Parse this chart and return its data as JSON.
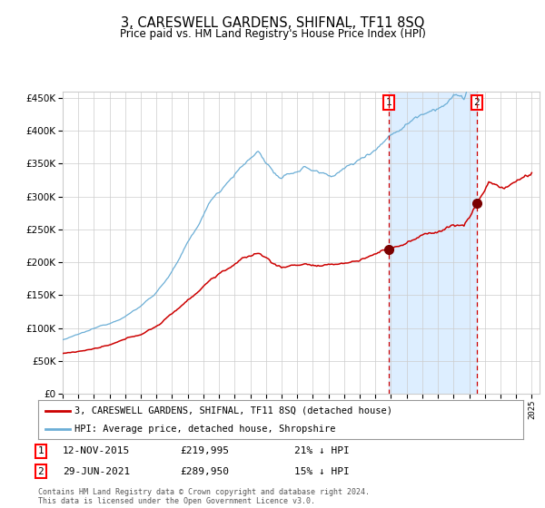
{
  "title": "3, CARESWELL GARDENS, SHIFNAL, TF11 8SQ",
  "subtitle": "Price paid vs. HM Land Registry's House Price Index (HPI)",
  "legend_line1": "3, CARESWELL GARDENS, SHIFNAL, TF11 8SQ (detached house)",
  "legend_line2": "HPI: Average price, detached house, Shropshire",
  "annotation1_date": "12-NOV-2015",
  "annotation1_price": "£219,995",
  "annotation1_pct": "21% ↓ HPI",
  "annotation2_date": "29-JUN-2021",
  "annotation2_price": "£289,950",
  "annotation2_pct": "15% ↓ HPI",
  "footnote": "Contains HM Land Registry data © Crown copyright and database right 2024.\nThis data is licensed under the Open Government Licence v3.0.",
  "sale1_year": 2015.87,
  "sale1_price": 219995,
  "sale2_year": 2021.49,
  "sale2_price": 289950,
  "hpi_color": "#6baed6",
  "property_color": "#cc0000",
  "sale_dot_color": "#7a0000",
  "vline_color": "#cc0000",
  "shade_color": "#ddeeff",
  "background_color": "#ffffff",
  "grid_color": "#cccccc",
  "ylim": [
    0,
    460000
  ],
  "yticks": [
    0,
    50000,
    100000,
    150000,
    200000,
    250000,
    300000,
    350000,
    400000,
    450000
  ],
  "xlim_start": 1995.0,
  "xlim_end": 2025.5
}
